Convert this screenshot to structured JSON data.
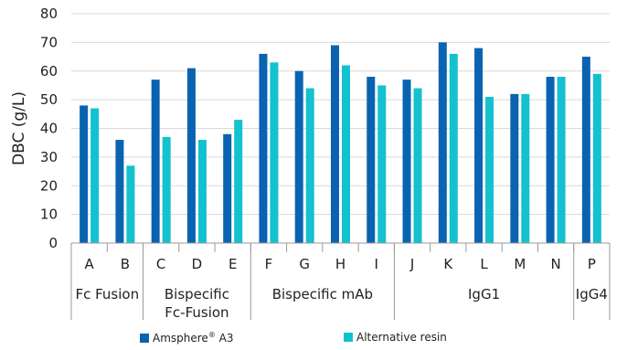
{
  "chart_data": {
    "type": "bar",
    "ylabel": "DBC (g/L)",
    "ylim": [
      0,
      80
    ],
    "yticks": [
      "0",
      "10",
      "20",
      "30",
      "40",
      "50",
      "60",
      "70",
      "80"
    ],
    "grid": true,
    "legend_position": "bottom",
    "categories": [
      "A",
      "B",
      "C",
      "D",
      "E",
      "F",
      "G",
      "H",
      "I",
      "J",
      "K",
      "L",
      "M",
      "N",
      "P"
    ],
    "groups": [
      {
        "label": [
          "Fc Fusion"
        ],
        "categories": [
          "A",
          "B"
        ]
      },
      {
        "label": [
          "Bispecific",
          "Fc-Fusion"
        ],
        "categories": [
          "C",
          "D",
          "E"
        ]
      },
      {
        "label": [
          "Bispecific mAb"
        ],
        "categories": [
          "F",
          "G",
          "H",
          "I"
        ]
      },
      {
        "label": [
          "IgG1"
        ],
        "categories": [
          "J",
          "K",
          "L",
          "M",
          "N"
        ]
      },
      {
        "label": [
          "IgG4"
        ],
        "categories": [
          "P"
        ]
      }
    ],
    "series": [
      {
        "name": "Amsphere® A3",
        "name_main": "Amsphere",
        "name_sup": "®",
        "name_suffix": " A3",
        "color": "#0a63b0",
        "values": [
          48,
          36,
          57,
          61,
          38,
          66,
          60,
          69,
          58,
          57,
          70,
          68,
          52,
          58,
          65
        ]
      },
      {
        "name": "Alternative resin",
        "color": "#13c1cf",
        "values": [
          47,
          27,
          37,
          36,
          43,
          63,
          54,
          62,
          55,
          54,
          66,
          51,
          52,
          58,
          59
        ]
      }
    ]
  }
}
